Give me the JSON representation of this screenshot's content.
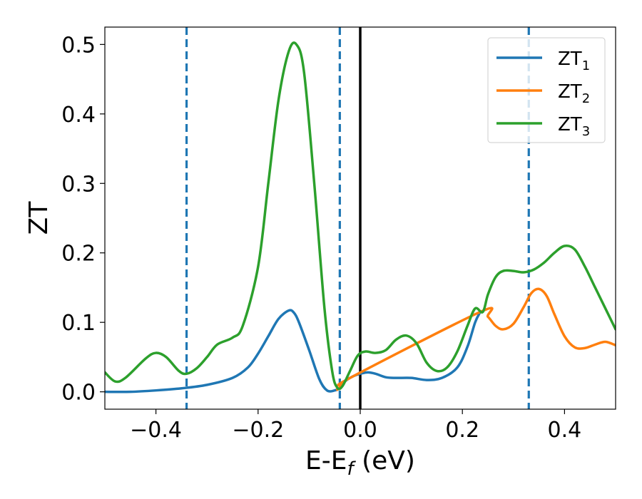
{
  "chart_data": {
    "type": "line",
    "title": "",
    "xlabel": {
      "main": "E-E",
      "sub": "f",
      "tail": " (eV)"
    },
    "ylabel": "ZT",
    "xlim": [
      -0.5,
      0.5
    ],
    "ylim": [
      -0.025,
      0.525
    ],
    "x_ticks": [
      -0.4,
      -0.2,
      0.0,
      0.2,
      0.4
    ],
    "x_tick_labels": [
      "−0.4",
      "−0.2",
      "0.0",
      "0.2",
      "0.4"
    ],
    "y_ticks": [
      0.0,
      0.1,
      0.2,
      0.3,
      0.4,
      0.5
    ],
    "y_tick_labels": [
      "0.0",
      "0.1",
      "0.2",
      "0.3",
      "0.4",
      "0.5"
    ],
    "grid": false,
    "legend_position": "top-right",
    "vertical_lines": [
      {
        "x": -0.34,
        "style": "dashed",
        "color": "#1f77b4"
      },
      {
        "x": -0.04,
        "style": "dashed",
        "color": "#1f77b4"
      },
      {
        "x": 0.0,
        "style": "solid",
        "color": "#000000"
      },
      {
        "x": 0.33,
        "style": "dashed",
        "color": "#1f77b4"
      }
    ],
    "series": [
      {
        "name": "ZT",
        "name_sub": "1",
        "color": "#1f77b4",
        "points": [
          [
            -0.5,
            0.0
          ],
          [
            -0.45,
            0.0
          ],
          [
            -0.4,
            0.002
          ],
          [
            -0.35,
            0.005
          ],
          [
            -0.3,
            0.01
          ],
          [
            -0.25,
            0.02
          ],
          [
            -0.22,
            0.035
          ],
          [
            -0.2,
            0.055
          ],
          [
            -0.18,
            0.08
          ],
          [
            -0.16,
            0.105
          ],
          [
            -0.14,
            0.117
          ],
          [
            -0.13,
            0.114
          ],
          [
            -0.12,
            0.1
          ],
          [
            -0.1,
            0.06
          ],
          [
            -0.08,
            0.018
          ],
          [
            -0.065,
            0.002
          ],
          [
            -0.05,
            0.002
          ],
          [
            -0.04,
            0.006
          ],
          [
            -0.03,
            0.015
          ],
          [
            -0.015,
            0.022
          ],
          [
            0.0,
            0.026
          ],
          [
            0.015,
            0.028
          ],
          [
            0.03,
            0.026
          ],
          [
            0.05,
            0.021
          ],
          [
            0.07,
            0.02
          ],
          [
            0.1,
            0.02
          ],
          [
            0.13,
            0.017
          ],
          [
            0.16,
            0.02
          ],
          [
            0.19,
            0.035
          ],
          [
            0.21,
            0.065
          ],
          [
            0.225,
            0.1
          ],
          [
            0.235,
            0.115
          ]
        ]
      },
      {
        "name": "ZT",
        "name_sub": "2",
        "color": "#ff7f0e",
        "points": [
          [
            -0.045,
            0.003
          ],
          [
            -0.035,
            0.01
          ],
          [
            -0.02,
            0.02
          ],
          [
            0.235,
            0.115
          ],
          [
            0.25,
            0.108
          ],
          [
            0.265,
            0.095
          ],
          [
            0.28,
            0.09
          ],
          [
            0.3,
            0.098
          ],
          [
            0.32,
            0.122
          ],
          [
            0.335,
            0.142
          ],
          [
            0.35,
            0.148
          ],
          [
            0.365,
            0.138
          ],
          [
            0.38,
            0.112
          ],
          [
            0.4,
            0.08
          ],
          [
            0.42,
            0.064
          ],
          [
            0.44,
            0.063
          ],
          [
            0.46,
            0.068
          ],
          [
            0.48,
            0.072
          ],
          [
            0.5,
            0.067
          ]
        ]
      },
      {
        "name": "ZT",
        "name_sub": "3",
        "color": "#2ca02c",
        "points": [
          [
            -0.5,
            0.028
          ],
          [
            -0.48,
            0.015
          ],
          [
            -0.46,
            0.02
          ],
          [
            -0.42,
            0.048
          ],
          [
            -0.4,
            0.056
          ],
          [
            -0.38,
            0.05
          ],
          [
            -0.355,
            0.03
          ],
          [
            -0.34,
            0.026
          ],
          [
            -0.32,
            0.034
          ],
          [
            -0.3,
            0.05
          ],
          [
            -0.28,
            0.068
          ],
          [
            -0.25,
            0.078
          ],
          [
            -0.23,
            0.095
          ],
          [
            -0.2,
            0.18
          ],
          [
            -0.18,
            0.3
          ],
          [
            -0.16,
            0.42
          ],
          [
            -0.14,
            0.49
          ],
          [
            -0.125,
            0.5
          ],
          [
            -0.11,
            0.46
          ],
          [
            -0.09,
            0.3
          ],
          [
            -0.07,
            0.12
          ],
          [
            -0.055,
            0.03
          ],
          [
            -0.045,
            0.006
          ],
          [
            -0.035,
            0.008
          ],
          [
            -0.02,
            0.03
          ],
          [
            -0.005,
            0.052
          ],
          [
            0.01,
            0.058
          ],
          [
            0.03,
            0.056
          ],
          [
            0.05,
            0.06
          ],
          [
            0.07,
            0.075
          ],
          [
            0.09,
            0.081
          ],
          [
            0.11,
            0.07
          ],
          [
            0.13,
            0.042
          ],
          [
            0.15,
            0.03
          ],
          [
            0.17,
            0.035
          ],
          [
            0.19,
            0.058
          ],
          [
            0.21,
            0.095
          ],
          [
            0.225,
            0.12
          ],
          [
            0.24,
            0.115
          ],
          [
            0.25,
            0.14
          ],
          [
            0.265,
            0.165
          ],
          [
            0.28,
            0.174
          ],
          [
            0.3,
            0.174
          ],
          [
            0.32,
            0.172
          ],
          [
            0.34,
            0.176
          ],
          [
            0.36,
            0.186
          ],
          [
            0.38,
            0.2
          ],
          [
            0.4,
            0.21
          ],
          [
            0.42,
            0.205
          ],
          [
            0.44,
            0.18
          ],
          [
            0.46,
            0.15
          ],
          [
            0.48,
            0.12
          ],
          [
            0.5,
            0.09
          ]
        ]
      }
    ]
  }
}
